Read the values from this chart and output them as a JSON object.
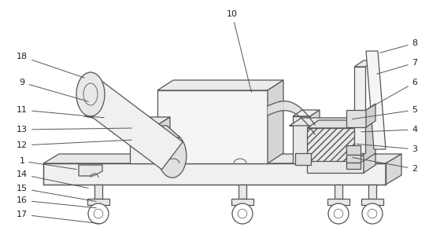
{
  "line_color": "#555555",
  "lw": 0.9,
  "label_fs": 8,
  "label_color": "#222222"
}
